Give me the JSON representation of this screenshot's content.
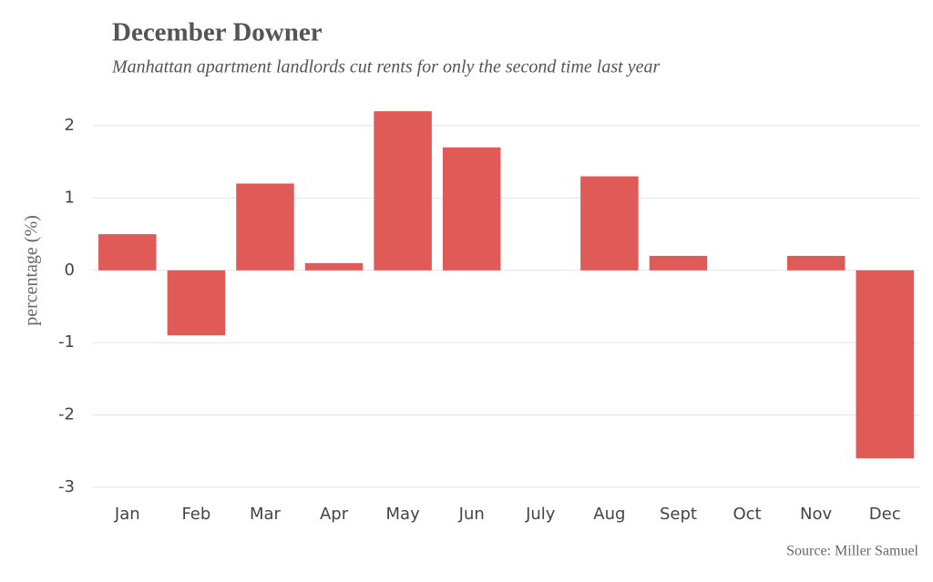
{
  "chart_data": {
    "type": "bar",
    "title": "December Downer",
    "subtitle": "Manhattan apartment landlords cut rents for only the second time last year",
    "y_label": "percentage (%)",
    "source": "Source: Miller Samuel",
    "categories": [
      "Jan",
      "Feb",
      "Mar",
      "Apr",
      "May",
      "Jun",
      "July",
      "Aug",
      "Sept",
      "Oct",
      "Nov",
      "Dec"
    ],
    "values": [
      0.5,
      -0.9,
      1.2,
      0.1,
      2.2,
      1.7,
      0,
      1.3,
      0.2,
      0,
      0.2,
      -2.6
    ],
    "color": "#e05a57",
    "ylim": [
      -3,
      2
    ],
    "yticks": [
      -3,
      -2,
      -1,
      0,
      1,
      2
    ],
    "grid": true
  }
}
